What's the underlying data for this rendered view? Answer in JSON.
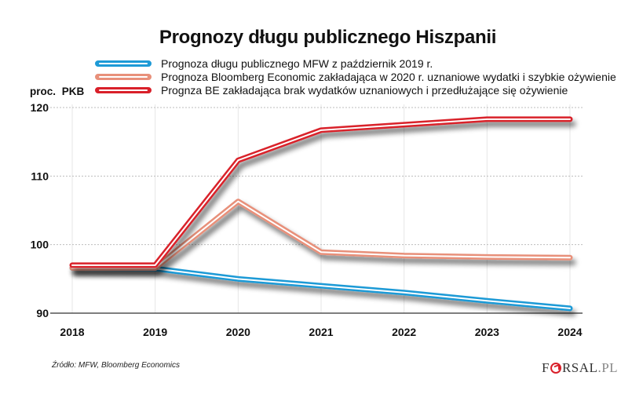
{
  "chart_data": {
    "type": "line",
    "title": "Prognozy długu publicznego Hiszpanii",
    "xlabel": "",
    "ylabel": "proc. PKB",
    "x": [
      "2018",
      "2019",
      "2020",
      "2021",
      "2022",
      "2023",
      "2024"
    ],
    "ylim": [
      90,
      120
    ],
    "yticks": [
      "90",
      "100",
      "110",
      "120"
    ],
    "grid": true,
    "legend_position": "top",
    "series": [
      {
        "name": "Prognoza długu publicznego MFW z październik 2019 r.",
        "color": "#1e9ad6",
        "values": [
          96.6,
          96.5,
          95.0,
          94.0,
          93.0,
          91.8,
          90.7
        ]
      },
      {
        "name": "Prognoza Bloomberg Economic zakładająca w 2020 r. uznaniowe wydatki i szybkie ożywienie",
        "color": "#e8907a",
        "values": [
          96.6,
          96.6,
          106.3,
          98.9,
          98.4,
          98.2,
          98.1
        ]
      },
      {
        "name": "Prognza BE zakładająca brak wydatków uznaniowych i przedłużające się ożywienie",
        "color": "#d9202a",
        "values": [
          97.0,
          97.0,
          112.3,
          116.7,
          117.5,
          118.3,
          118.3
        ]
      }
    ],
    "source": "Źródło:  MFW, Bloomberg Economics"
  },
  "branding": {
    "logo_prefix": "F",
    "logo_suffix": "RSAL",
    "logo_domain": ".PL"
  }
}
